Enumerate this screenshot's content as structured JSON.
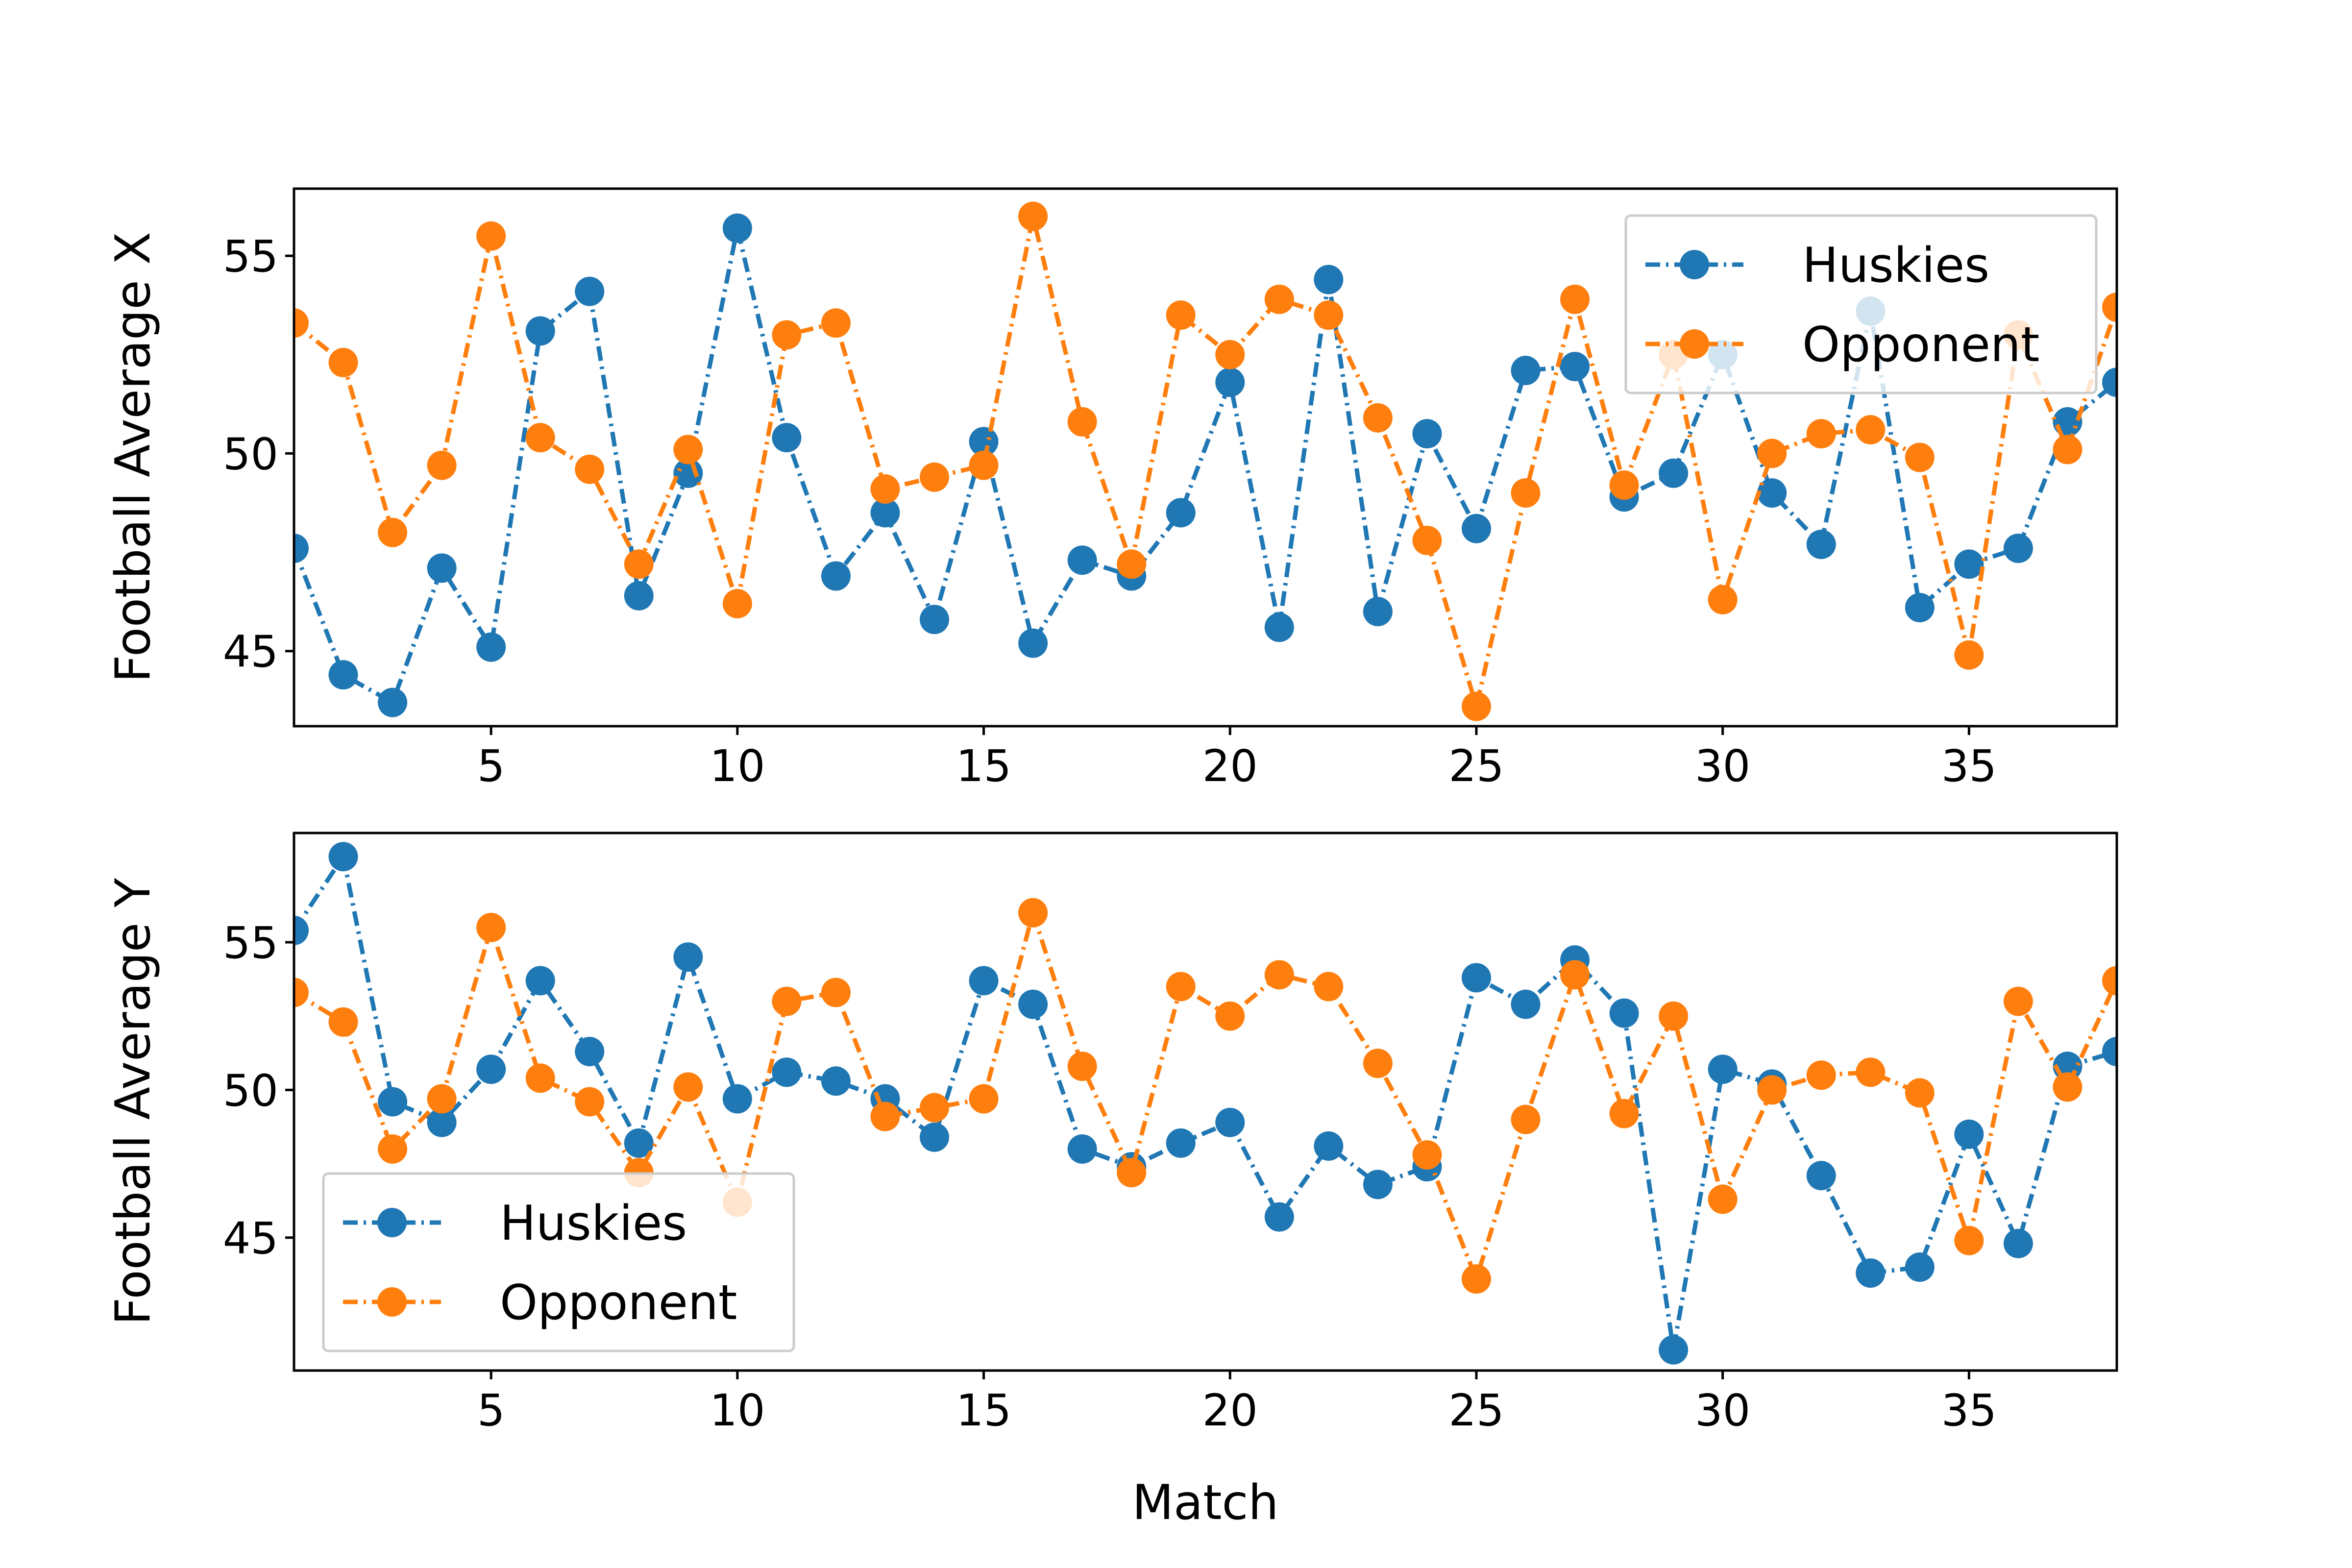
{
  "colors": {
    "huskies": "#1f77b4",
    "opponent": "#ff7f0e"
  },
  "chart_data": [
    {
      "type": "line",
      "ylabel": "Football Average X",
      "xlabel": "",
      "xlim": [
        1,
        38
      ],
      "ylim": [
        43.1,
        56.7
      ],
      "xticks": [
        5,
        10,
        15,
        20,
        25,
        30,
        35
      ],
      "yticks": [
        45,
        50,
        55
      ],
      "legend_position": "upper-right",
      "x": [
        1,
        2,
        3,
        4,
        5,
        6,
        7,
        8,
        9,
        10,
        11,
        12,
        13,
        14,
        15,
        16,
        17,
        18,
        19,
        20,
        21,
        22,
        23,
        24,
        25,
        26,
        27,
        28,
        29,
        30,
        31,
        32,
        33,
        34,
        35,
        36,
        37,
        38
      ],
      "series": [
        {
          "name": "Huskies",
          "values": [
            47.6,
            44.4,
            43.7,
            47.1,
            45.1,
            53.1,
            54.1,
            46.4,
            49.5,
            55.7,
            50.4,
            46.9,
            48.5,
            45.8,
            50.3,
            45.2,
            47.3,
            46.9,
            48.5,
            51.8,
            45.6,
            54.4,
            46.0,
            50.5,
            48.1,
            52.1,
            52.2,
            48.9,
            49.5,
            52.5,
            49.0,
            47.7,
            53.6,
            46.1,
            47.2,
            47.6,
            50.8,
            51.8
          ]
        },
        {
          "name": "Opponent",
          "values": [
            53.3,
            52.3,
            48.0,
            49.7,
            55.5,
            50.4,
            49.6,
            47.2,
            50.1,
            46.2,
            53.0,
            53.3,
            49.1,
            49.4,
            49.7,
            56.0,
            50.8,
            47.2,
            53.5,
            52.5,
            53.9,
            53.5,
            50.9,
            47.8,
            43.6,
            49.0,
            53.9,
            49.2,
            52.5,
            46.3,
            50.0,
            50.5,
            50.6,
            49.9,
            44.9,
            53.0,
            50.1,
            53.7
          ]
        }
      ]
    },
    {
      "type": "line",
      "ylabel": "Football Average Y",
      "xlabel": "Match",
      "xlim": [
        1,
        38
      ],
      "ylim": [
        40.5,
        58.7
      ],
      "xticks": [
        5,
        10,
        15,
        20,
        25,
        30,
        35
      ],
      "yticks": [
        45,
        50,
        55
      ],
      "legend_position": "lower-left",
      "x": [
        1,
        2,
        3,
        4,
        5,
        6,
        7,
        8,
        9,
        10,
        11,
        12,
        13,
        14,
        15,
        16,
        17,
        18,
        19,
        20,
        21,
        22,
        23,
        24,
        25,
        26,
        27,
        28,
        29,
        30,
        31,
        32,
        33,
        34,
        35,
        36,
        37,
        38
      ],
      "series": [
        {
          "name": "Huskies",
          "values": [
            55.4,
            57.9,
            49.6,
            48.9,
            50.7,
            53.7,
            51.3,
            48.2,
            54.5,
            49.7,
            50.6,
            50.3,
            49.7,
            48.4,
            53.7,
            52.9,
            48.0,
            47.4,
            48.2,
            48.9,
            45.7,
            48.1,
            46.8,
            47.4,
            53.8,
            52.9,
            54.4,
            52.6,
            41.2,
            50.7,
            50.2,
            47.1,
            43.8,
            44.0,
            48.5,
            44.8,
            50.8,
            51.3
          ]
        },
        {
          "name": "Opponent",
          "values": [
            53.3,
            52.3,
            48.0,
            49.7,
            55.5,
            50.4,
            49.6,
            47.2,
            50.1,
            46.2,
            53.0,
            53.3,
            49.1,
            49.4,
            49.7,
            56.0,
            50.8,
            47.2,
            53.5,
            52.5,
            53.9,
            53.5,
            50.9,
            47.8,
            43.6,
            49.0,
            53.9,
            49.2,
            52.5,
            46.3,
            50.0,
            50.5,
            50.6,
            49.9,
            44.9,
            53.0,
            50.1,
            53.7
          ]
        }
      ]
    }
  ]
}
